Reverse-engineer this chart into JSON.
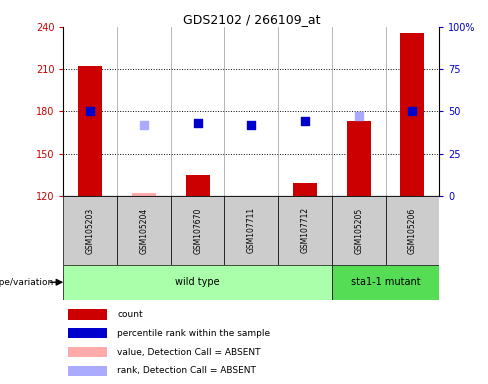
{
  "title": "GDS2102 / 266109_at",
  "samples": [
    "GSM105203",
    "GSM105204",
    "GSM107670",
    "GSM107711",
    "GSM107712",
    "GSM105205",
    "GSM105206"
  ],
  "ylim_left": [
    120,
    240
  ],
  "ylim_right": [
    0,
    100
  ],
  "yticks_left": [
    120,
    150,
    180,
    210,
    240
  ],
  "yticks_right": [
    0,
    25,
    50,
    75,
    100
  ],
  "bar_values": [
    212,
    122,
    135,
    119,
    129,
    173,
    236
  ],
  "bar_colors": [
    "#cc0000",
    "#ffaaaa",
    "#cc0000",
    "#cc0000",
    "#cc0000",
    "#cc0000",
    "#cc0000"
  ],
  "rank_present": {
    "0": 50,
    "2": 43,
    "3": 42,
    "4": 44,
    "6": 50
  },
  "rank_absent": {
    "1": 42,
    "5": 47
  },
  "wt_indices": [
    0,
    1,
    2,
    3,
    4
  ],
  "sta_indices": [
    5,
    6
  ],
  "wt_label": "wild type",
  "sta_label": "sta1-1 mutant",
  "wt_color": "#aaffaa",
  "sta_color": "#55dd55",
  "sample_box_color": "#cccccc",
  "genotype_label": "genotype/variation",
  "legend_items": [
    {
      "label": "count",
      "color": "#cc0000"
    },
    {
      "label": "percentile rank within the sample",
      "color": "#0000cc"
    },
    {
      "label": "value, Detection Call = ABSENT",
      "color": "#ffaaaa"
    },
    {
      "label": "rank, Detection Call = ABSENT",
      "color": "#aaaaff"
    }
  ],
  "grid_yticks": [
    150,
    180,
    210
  ],
  "background_color": "#ffffff"
}
